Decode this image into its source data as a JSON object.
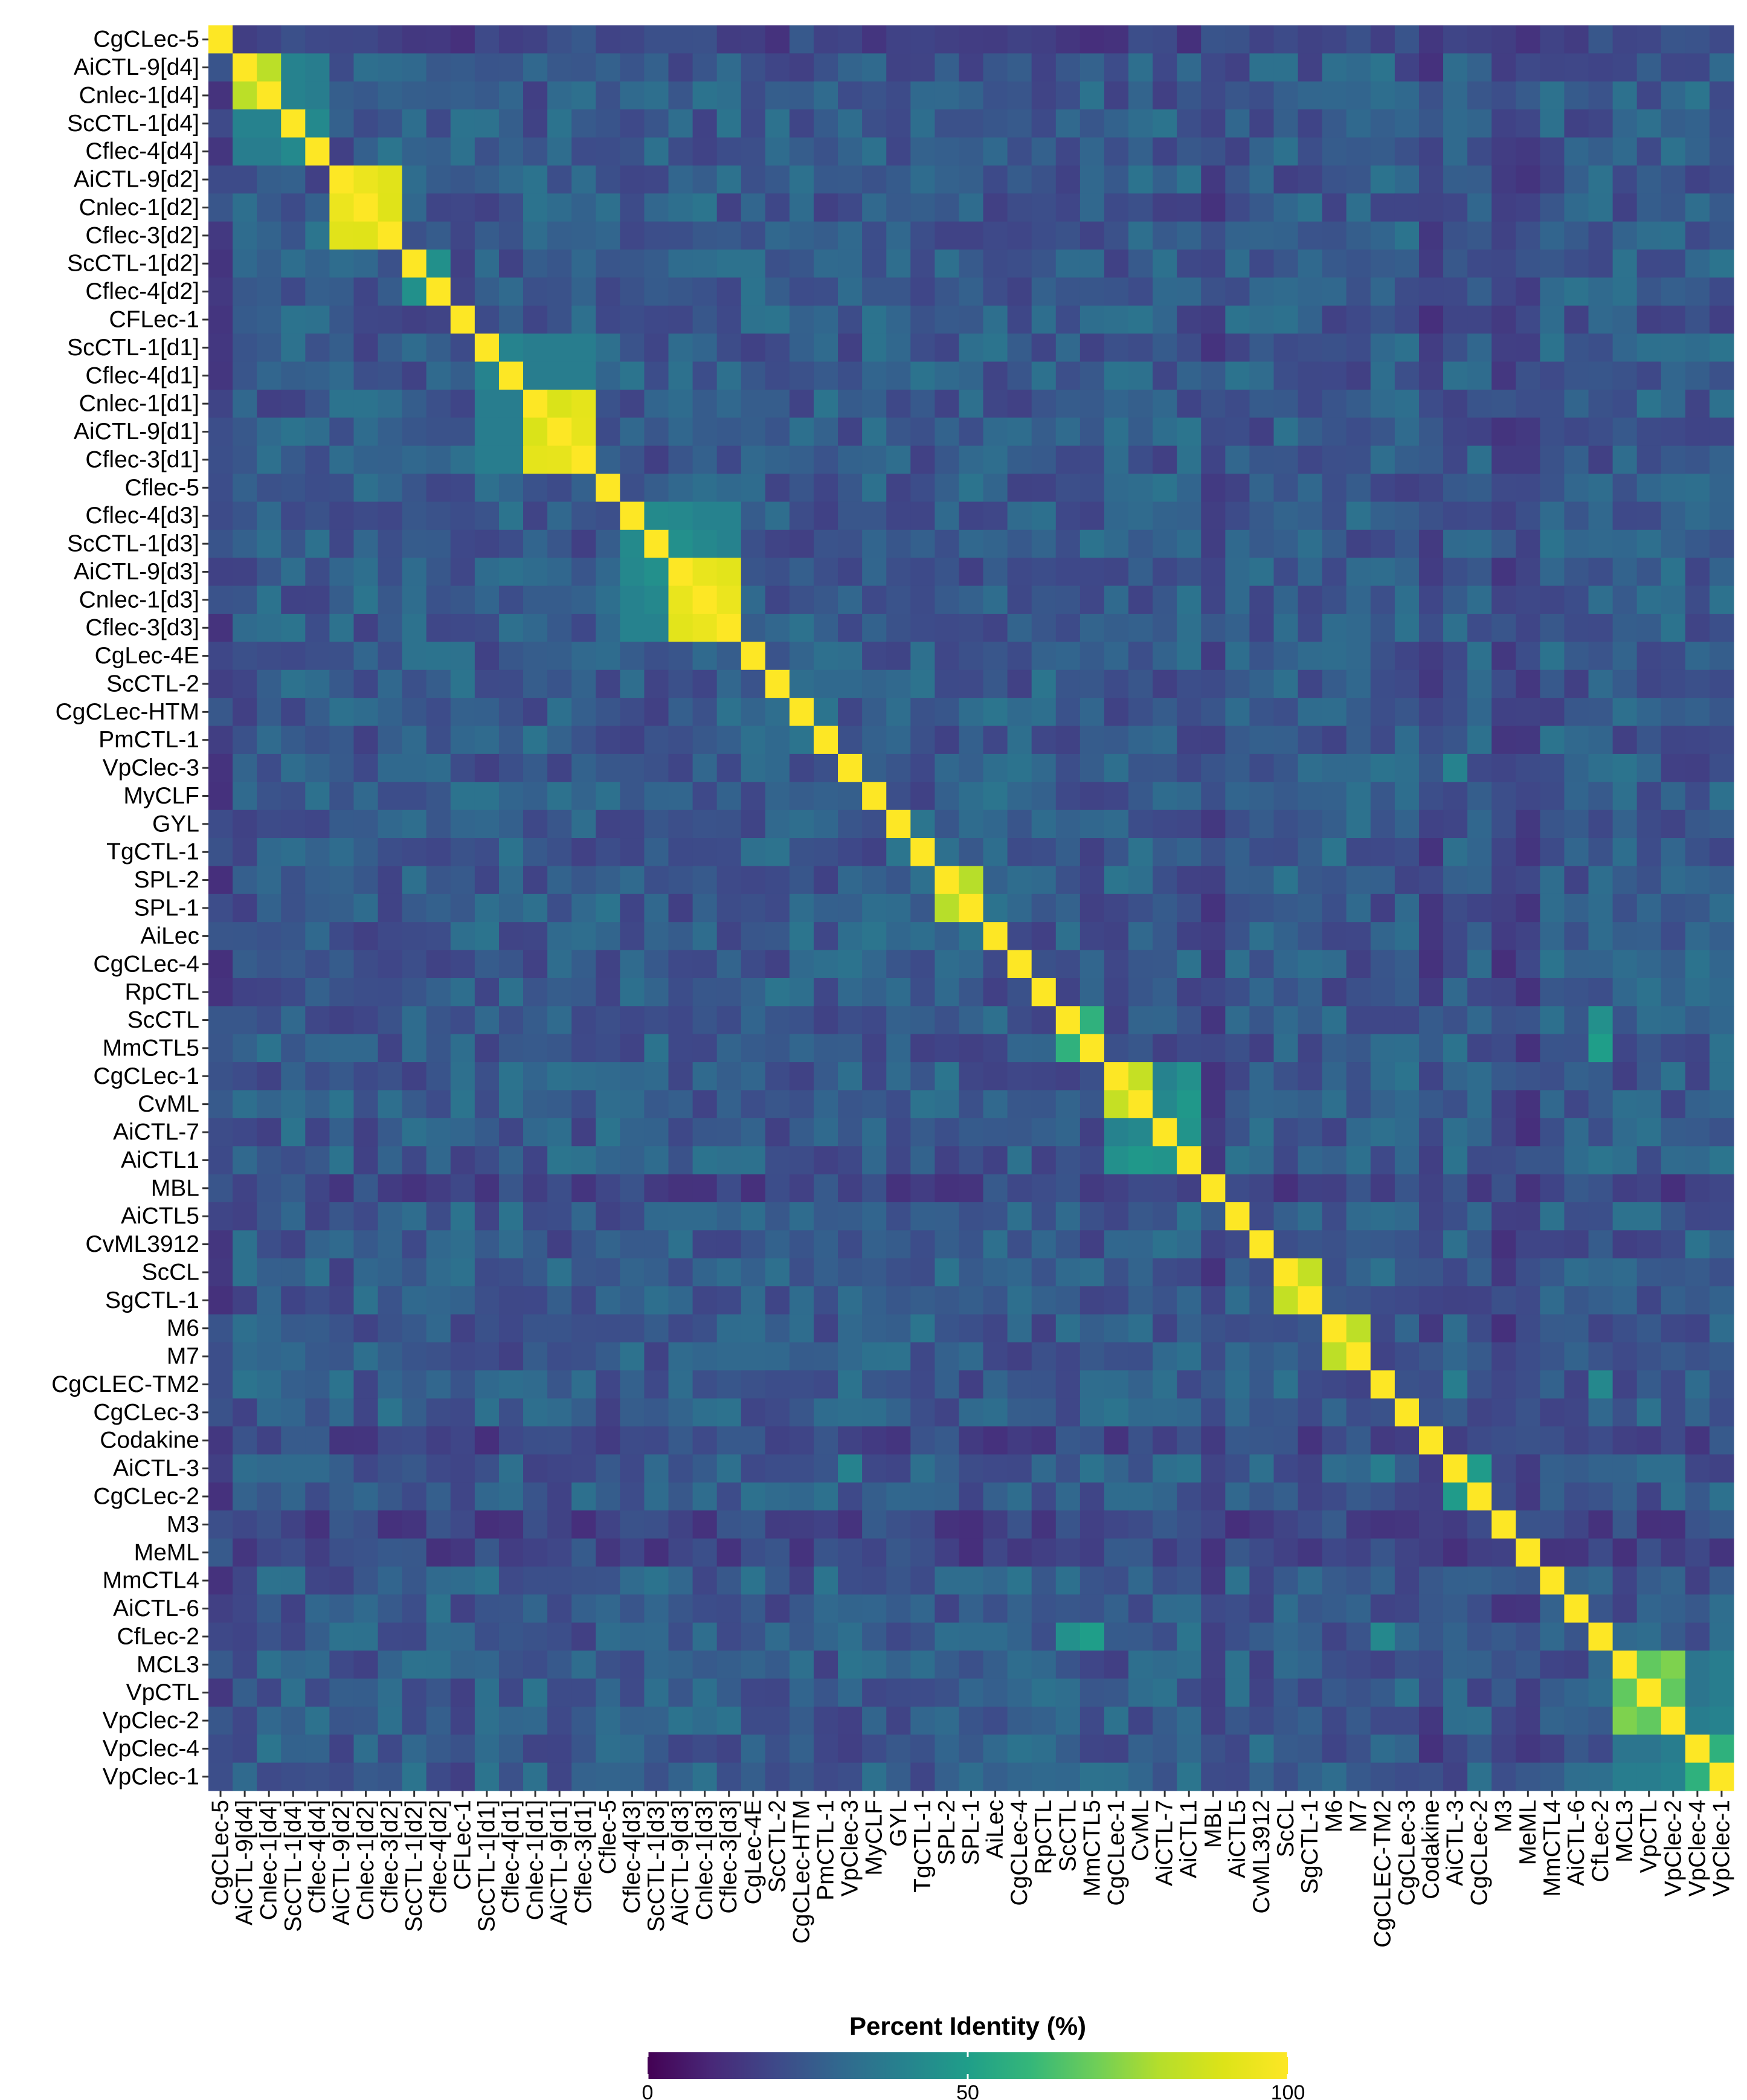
{
  "chart_data": {
    "type": "heatmap",
    "title": "",
    "xlabel": "",
    "ylabel": "",
    "labels": [
      "CgCLec-5",
      "AiCTL-9[d4]",
      "Cnlec-1[d4]",
      "ScCTL-1[d4]",
      "Cflec-4[d4]",
      "AiCTL-9[d2]",
      "Cnlec-1[d2]",
      "Cflec-3[d2]",
      "ScCTL-1[d2]",
      "Cflec-4[d2]",
      "CFLec-1",
      "ScCTL-1[d1]",
      "Cflec-4[d1]",
      "Cnlec-1[d1]",
      "AiCTL-9[d1]",
      "Cflec-3[d1]",
      "Cflec-5",
      "Cflec-4[d3]",
      "ScCTL-1[d3]",
      "AiCTL-9[d3]",
      "Cnlec-1[d3]",
      "Cflec-3[d3]",
      "CgLec-4E",
      "ScCTL-2",
      "CgCLec-HTM",
      "PmCTL-1",
      "VpClec-3",
      "MyCLF",
      "GYL",
      "TgCTL-1",
      "SPL-2",
      "SPL-1",
      "AiLec",
      "CgCLec-4",
      "RpCTL",
      "ScCTL",
      "MmCTL5",
      "CgCLec-1",
      "CvML",
      "AiCTL-7",
      "AiCTL1",
      "MBL",
      "AiCTL5",
      "CvML3912",
      "ScCL",
      "SgCTL-1",
      "M6",
      "M7",
      "CgCLEC-TM2",
      "CgCLec-3",
      "Codakine",
      "AiCTL-3",
      "CgCLec-2",
      "M3",
      "MeML",
      "MmCTL4",
      "AiCTL-6",
      "CfLec-2",
      "MCL3",
      "VpCTL",
      "VpClec-2",
      "VpClec-4",
      "VpClec-1"
    ],
    "color_scale": {
      "name": "viridis",
      "min": 0,
      "max": 100,
      "low": "#440154",
      "mid": "#21918c",
      "high": "#fde725"
    },
    "legend": {
      "title": "Percent Identity (%)",
      "ticks": [
        0,
        50,
        100
      ],
      "placement": "bottom"
    },
    "baseline_identity_approx": 25,
    "diagonal_value": 100,
    "high_identity_blocks": [
      {
        "members": [
          "AiCTL-9[d4]",
          "Cnlec-1[d4]"
        ],
        "value": 80
      },
      {
        "members": [
          "ScCTL-1[d4]",
          "Cflec-4[d4]"
        ],
        "value": 45
      },
      {
        "members": [
          "AiCTL-9[d2]",
          "Cnlec-1[d2]",
          "Cflec-3[d2]"
        ],
        "value": 92
      },
      {
        "members": [
          "ScCTL-1[d2]",
          "Cflec-4[d2]"
        ],
        "value": 45
      },
      {
        "members": [
          "ScCTL-1[d1]",
          "Cflec-4[d1]"
        ],
        "value": 40
      },
      {
        "members": [
          "Cnlec-1[d1]",
          "AiCTL-9[d1]",
          "Cflec-3[d1]"
        ],
        "value": 92
      },
      {
        "members": [
          "Cflec-4[d3]",
          "ScCTL-1[d3]"
        ],
        "value": 42
      },
      {
        "members": [
          "AiCTL-9[d3]",
          "Cnlec-1[d3]",
          "Cflec-3[d3]"
        ],
        "value": 92
      },
      {
        "members": [
          "SPL-2",
          "SPL-1"
        ],
        "value": 82
      },
      {
        "members": [
          "ScCTL",
          "MmCTL5"
        ],
        "value": 55
      },
      {
        "members": [
          "CgCLec-1",
          "CvML"
        ],
        "value": 85
      },
      {
        "members": [
          "AiCTL-7",
          "AiCTL1"
        ],
        "value": 45
      },
      {
        "members": [
          "ScCL",
          "SgCTL-1"
        ],
        "value": 85
      },
      {
        "members": [
          "M6",
          "M7"
        ],
        "value": 82
      },
      {
        "members": [
          "AiCTL-3",
          "CgCLec-2"
        ],
        "value": 50
      },
      {
        "members": [
          "MCL3",
          "VpCTL",
          "VpClec-2"
        ],
        "value": 70
      },
      {
        "members": [
          "VpClec-4",
          "VpClec-1"
        ],
        "value": 55
      }
    ],
    "moderate_cross_pairs": [
      {
        "a": "Cflec-4[d3]",
        "b": "AiCTL-9[d3]",
        "value": 42
      },
      {
        "a": "Cflec-4[d3]",
        "b": "Cnlec-1[d3]",
        "value": 40
      },
      {
        "a": "Cflec-4[d3]",
        "b": "Cflec-3[d3]",
        "value": 40
      },
      {
        "a": "ScCTL-1[d3]",
        "b": "AiCTL-9[d3]",
        "value": 45
      },
      {
        "a": "ScCTL-1[d3]",
        "b": "Cnlec-1[d3]",
        "value": 42
      },
      {
        "a": "ScCTL-1[d3]",
        "b": "Cflec-3[d3]",
        "value": 40
      },
      {
        "a": "AiCTL-9[d4]",
        "b": "ScCTL-1[d4]",
        "value": 40
      },
      {
        "a": "AiCTL-9[d4]",
        "b": "Cflec-4[d4]",
        "value": 38
      },
      {
        "a": "Cnlec-1[d4]",
        "b": "ScCTL-1[d4]",
        "value": 40
      },
      {
        "a": "Cnlec-1[d4]",
        "b": "Cflec-4[d4]",
        "value": 38
      },
      {
        "a": "ScCTL-1[d1]",
        "b": "Cnlec-1[d1]",
        "value": 38
      },
      {
        "a": "ScCTL-1[d1]",
        "b": "AiCTL-9[d1]",
        "value": 38
      },
      {
        "a": "ScCTL-1[d1]",
        "b": "Cflec-3[d1]",
        "value": 38
      },
      {
        "a": "Cflec-4[d1]",
        "b": "Cnlec-1[d1]",
        "value": 38
      },
      {
        "a": "Cflec-4[d1]",
        "b": "AiCTL-9[d1]",
        "value": 38
      },
      {
        "a": "Cflec-4[d1]",
        "b": "Cflec-3[d1]",
        "value": 38
      },
      {
        "a": "CgCLec-1",
        "b": "AiCTL-7",
        "value": 40
      },
      {
        "a": "CgCLec-1",
        "b": "AiCTL1",
        "value": 45
      },
      {
        "a": "CvML",
        "b": "AiCTL-7",
        "value": 42
      },
      {
        "a": "CvML",
        "b": "AiCTL1",
        "value": 48
      },
      {
        "a": "MCL3",
        "b": "VpClec-4",
        "value": 35
      },
      {
        "a": "MCL3",
        "b": "VpClec-1",
        "value": 38
      },
      {
        "a": "VpCTL",
        "b": "VpClec-4",
        "value": 35
      },
      {
        "a": "VpCTL",
        "b": "VpClec-1",
        "value": 38
      },
      {
        "a": "VpClec-2",
        "b": "VpClec-4",
        "value": 38
      },
      {
        "a": "VpClec-2",
        "b": "VpClec-1",
        "value": 40
      },
      {
        "a": "ScCTL",
        "b": "CfLec-2",
        "value": 45
      },
      {
        "a": "MmCTL5",
        "b": "CfLec-2",
        "value": 50
      },
      {
        "a": "VpClec-3",
        "b": "AiCTL-3",
        "value": 40
      },
      {
        "a": "CgCLEC-TM2",
        "b": "CfLec-2",
        "value": 42
      },
      {
        "a": "CgCLEC-TM2",
        "b": "AiCTL-3",
        "value": 38
      }
    ],
    "low_identity_labels": [
      "CgCLec-5",
      "MBL",
      "M3",
      "MeML",
      "Codakine"
    ]
  }
}
